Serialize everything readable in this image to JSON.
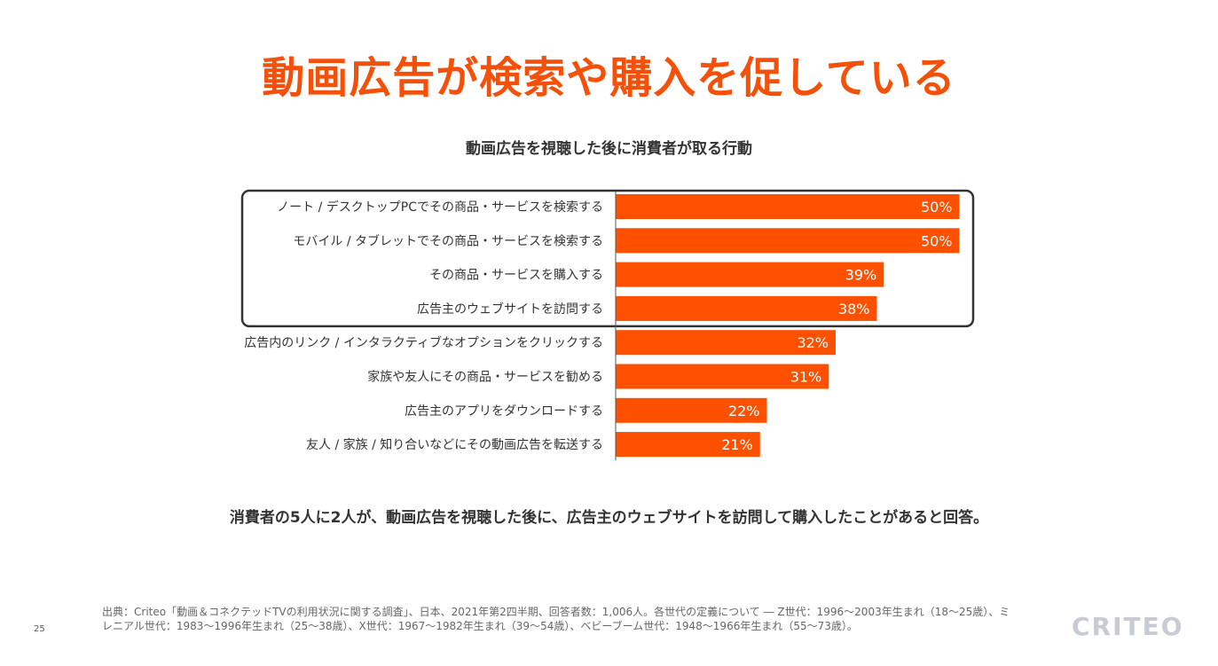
{
  "slide": {
    "title": "動画広告が検索や購入を促している",
    "summary": "消費者の5人に2人が、動画広告を視聴した後に、広告主のウェブサイトを訪問して購入したことがあると回答。",
    "source": "出典：Criteo「動画＆コネクテッドTVの利用状況に関する調査」、日本、2021年第2四半期、回答者数：1,006人。各世代の定義について ― Z世代：1996〜2003年生まれ（18〜25歳）、ミレニアル世代：1983〜1996年生まれ（25〜38歳）、X世代：1967〜1982年生まれ（39〜54歳）、ベビーブーム世代：1948〜1966年生まれ（55〜73歳）。",
    "page_number": "25",
    "logo": "CRITEO"
  },
  "colors": {
    "accent": "#f5500a",
    "bar": "#ff5000",
    "highlight_box": "#333333"
  },
  "chart_data": {
    "type": "bar",
    "orientation": "horizontal",
    "title": "動画広告を視聴した後に消費者が取る行動",
    "categories": [
      "ノート / デスクトップPCでその商品・サービスを検索する",
      "モバイル / タブレットでその商品・サービスを検索する",
      "その商品・サービスを購入する",
      "広告主のウェブサイトを訪問する",
      "広告内のリンク / インタラクティブなオプションをクリックする",
      "家族や友人にその商品・サービスを勧める",
      "広告主のアプリをダウンロードする",
      "友人 / 家族 / 知り合いなどにその動画広告を転送する"
    ],
    "values": [
      50,
      50,
      39,
      38,
      32,
      31,
      22,
      21
    ],
    "value_labels": [
      "50%",
      "50%",
      "39%",
      "38%",
      "32%",
      "31%",
      "22%",
      "21%"
    ],
    "highlighted": [
      0,
      1,
      2,
      3
    ],
    "xlim": [
      0,
      50
    ],
    "xlabel": "",
    "ylabel": ""
  }
}
